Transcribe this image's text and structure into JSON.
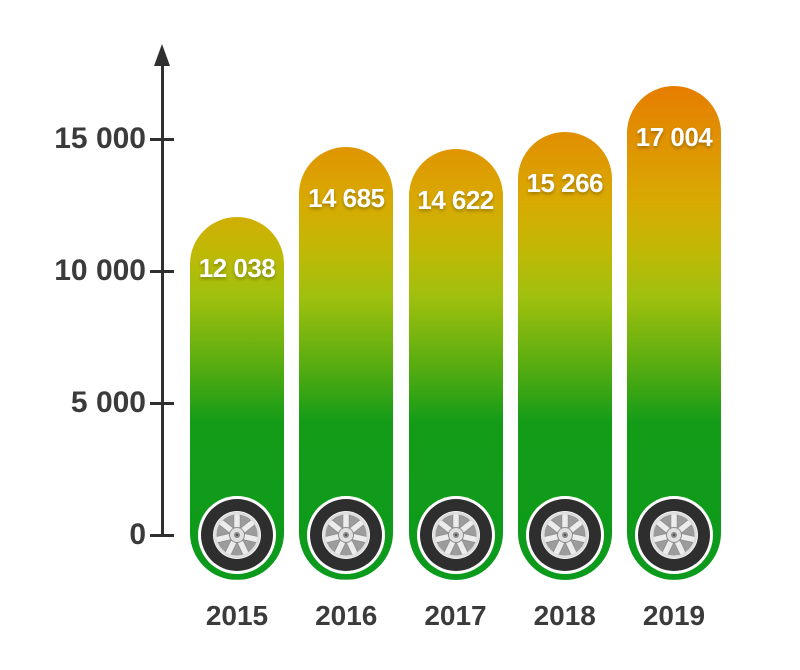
{
  "chart_data": {
    "type": "bar",
    "title": "",
    "xlabel": "",
    "ylabel": "",
    "categories": [
      "2015",
      "2016",
      "2017",
      "2018",
      "2019"
    ],
    "values": [
      12038,
      14685,
      14622,
      15266,
      17004
    ],
    "value_labels": [
      "12 038",
      "14 685",
      "14 622",
      "15 266",
      "17 004"
    ],
    "y_ticks": [
      {
        "value": 0,
        "label": "0"
      },
      {
        "value": 5000,
        "label": "5 000"
      },
      {
        "value": 10000,
        "label": "10 000"
      },
      {
        "value": 15000,
        "label": "15 000"
      }
    ],
    "ylim": [
      0,
      17500
    ],
    "grid": false,
    "legend": false,
    "bar_icon": "car-wheel-icon",
    "colors": {
      "axis": "#2f2f2f",
      "tick_label": "#3b3b3b",
      "category_label": "#3b3b3b",
      "value_label": "#ffffff",
      "tire": "#2e2e2e",
      "rim_spokes": "#ececec",
      "rim_gaps": "#9c9c9c",
      "gradient_stops": [
        {
          "pos": 0.0,
          "color": "#e67d00"
        },
        {
          "pos": 0.23,
          "color": "#d9a902"
        },
        {
          "pos": 0.33,
          "color": "#c2b806"
        },
        {
          "pos": 0.43,
          "color": "#9fc00e"
        },
        {
          "pos": 0.56,
          "color": "#5bad10"
        },
        {
          "pos": 0.68,
          "color": "#149c18"
        },
        {
          "pos": 1.0,
          "color": "#0c9a1c"
        }
      ]
    }
  }
}
